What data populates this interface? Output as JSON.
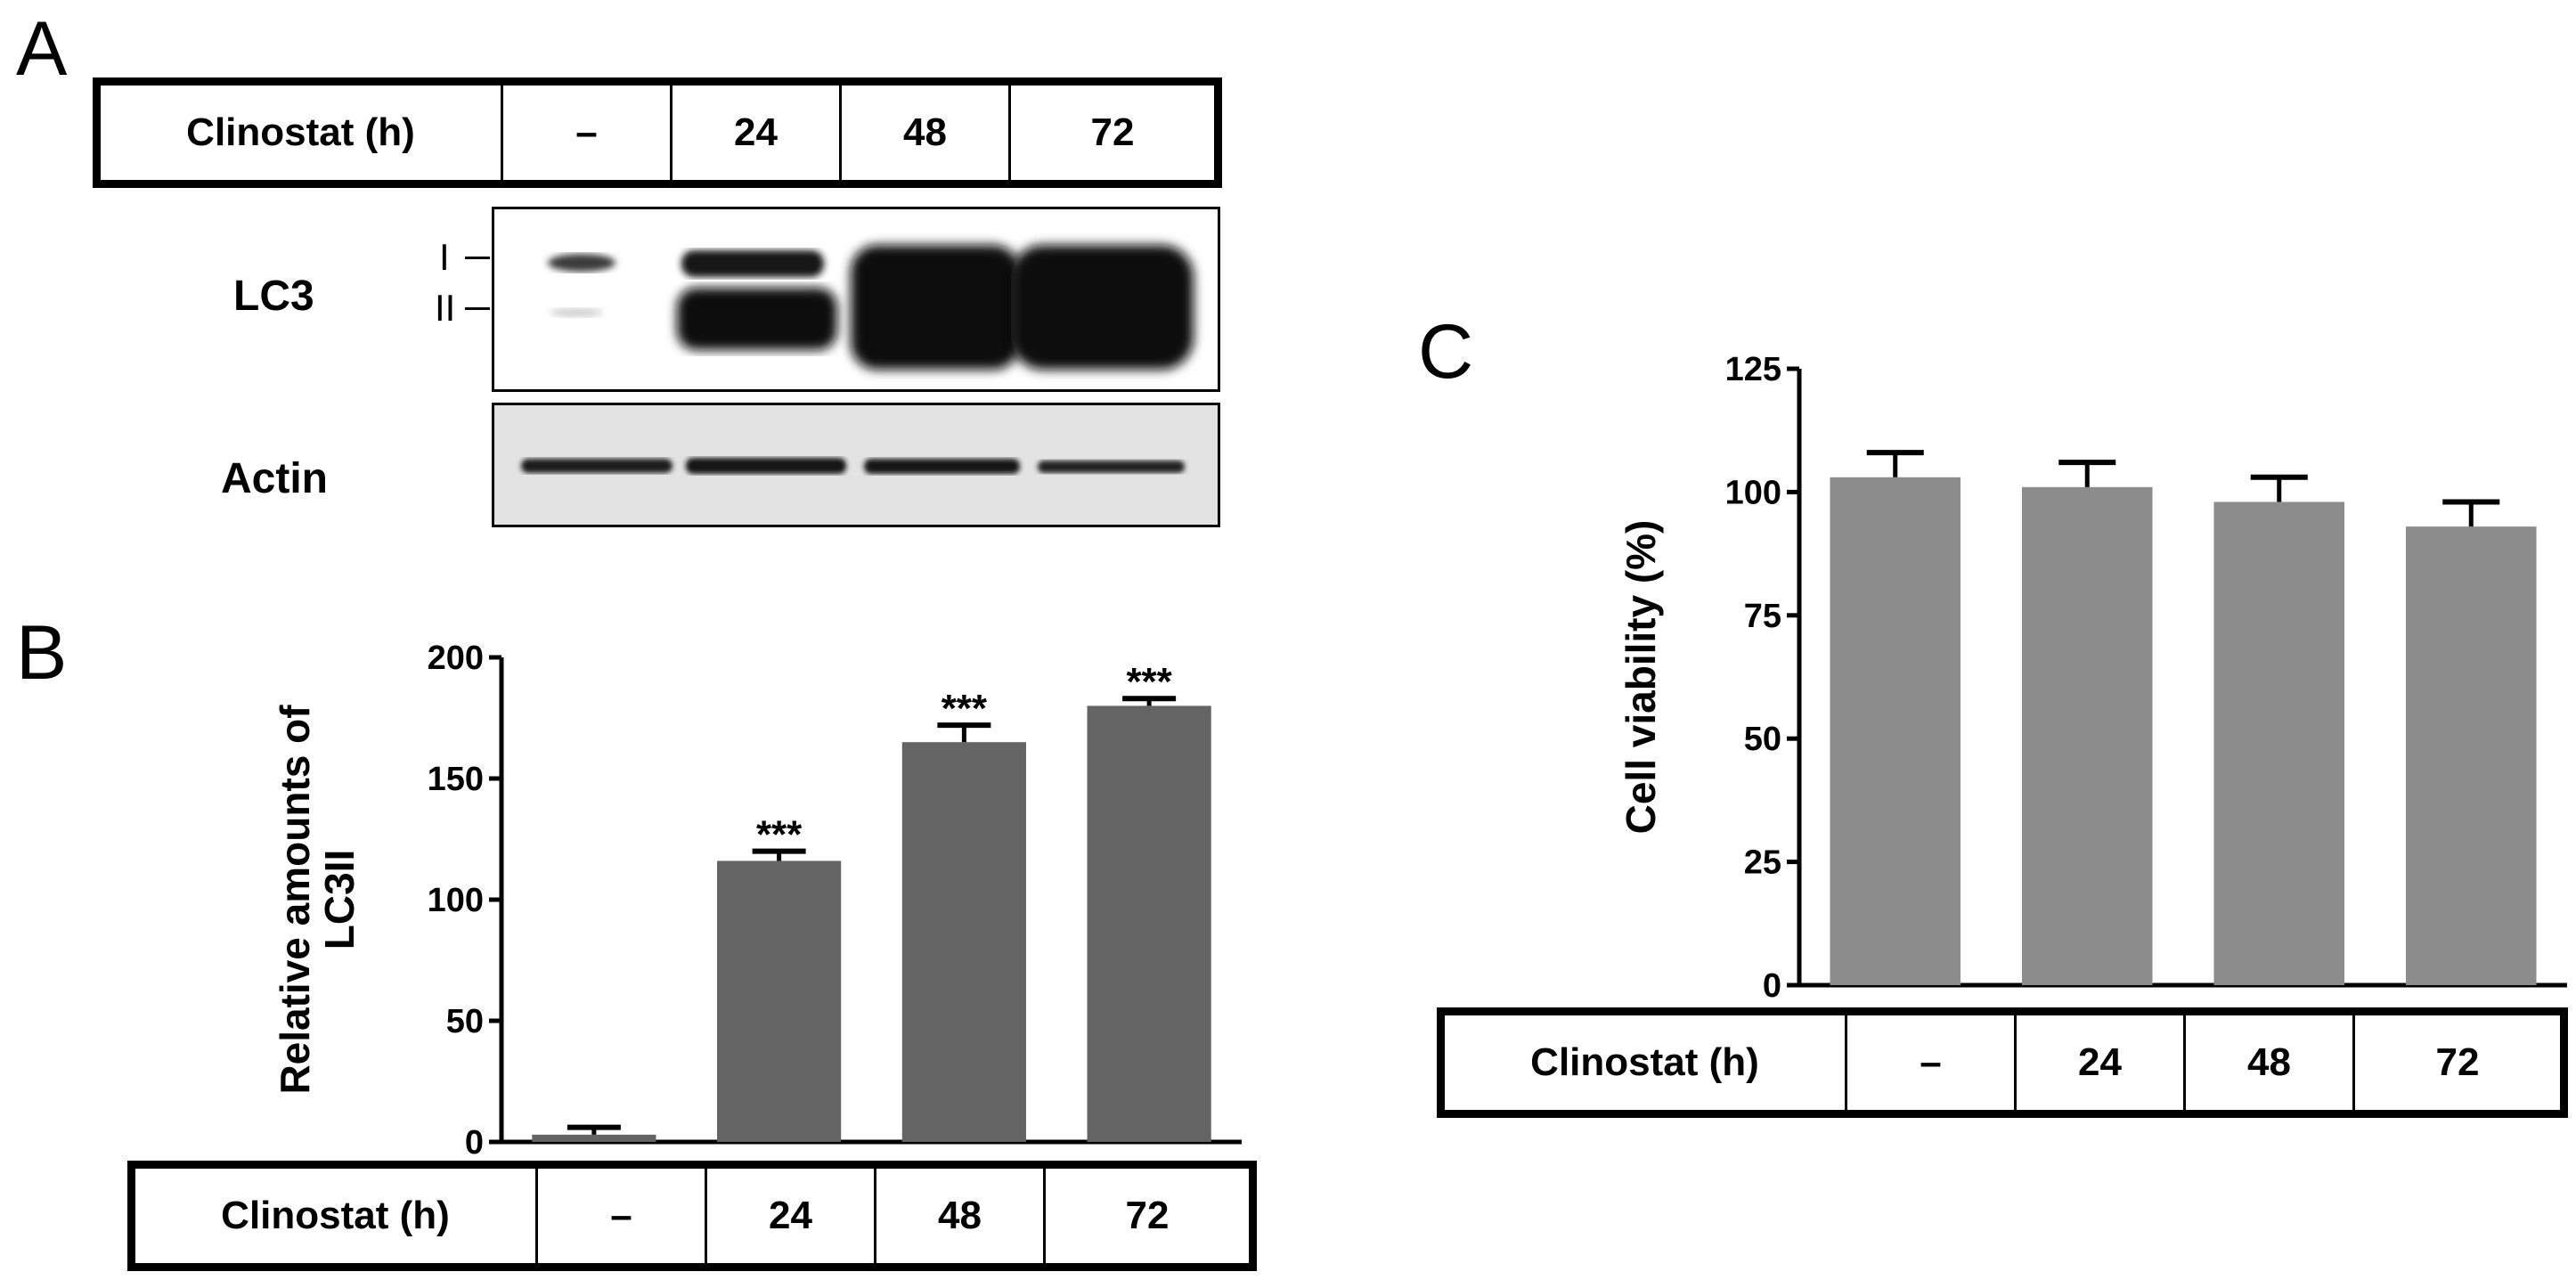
{
  "panels": {
    "a": "A",
    "b": "B",
    "c": "C"
  },
  "condition_table": {
    "label": "Clinostat (h)",
    "columns": [
      "–",
      "24",
      "48",
      "72"
    ]
  },
  "blot": {
    "lc3_label": "LC3",
    "actin_label": "Actin",
    "band_I": "I",
    "band_II": "II"
  },
  "colors": {
    "bar_b": "#646464",
    "bar_c": "#8c8c8c"
  },
  "chart_data": [
    {
      "type": "bar",
      "panel": "B",
      "categories": [
        "–",
        "24",
        "48",
        "72"
      ],
      "values": [
        3,
        116,
        165,
        180
      ],
      "errors": [
        3,
        4,
        7,
        3
      ],
      "annotations": [
        "",
        "***",
        "***",
        "***"
      ],
      "ylabel": "Relative amounts of LC3II",
      "ylabel_lines": [
        "Relative amounts of",
        "LC3II"
      ],
      "ylim": [
        0,
        200
      ],
      "yticks": [
        0,
        50,
        100,
        150,
        200
      ]
    },
    {
      "type": "bar",
      "panel": "C",
      "categories": [
        "–",
        "24",
        "48",
        "72"
      ],
      "values": [
        103,
        101,
        98,
        93
      ],
      "errors": [
        5,
        5,
        5,
        5
      ],
      "ylabel": "Cell viability (%)",
      "ylim": [
        0,
        125
      ],
      "yticks": [
        0,
        25,
        50,
        75,
        100,
        125
      ]
    }
  ]
}
